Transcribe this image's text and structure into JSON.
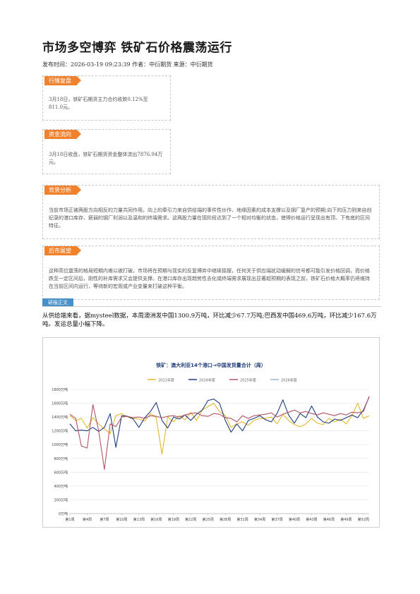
{
  "article": {
    "title": "市场多空博弈 铁矿石价格震荡运行",
    "meta": "发布时间：2026-03-19 09:23:39 作者：中衍期货 来源：中衍期货"
  },
  "sections": {
    "review": {
      "tag": "行情复盘",
      "text": "3月18日，铁矿石期货主力合约收跌0.12%至811.0元。"
    },
    "flow": {
      "tag": "资金流向",
      "text": "3月18日收盘，铁矿石期货资金整体流出7876.94万元。"
    },
    "background": {
      "tag": "背景分析",
      "text": "当前市场正被两股方向相反的力量共同作用。向上的牵引力来自供给端的事件性炒作、地缘因素的成本支撑以及钢厂复产的预期;向下的压力则来自创纪录的港口库存、疲弱的钢厂利润以及温和的终端需求。这两股力量在现阶段达到了一个相对均衡的状态，使得价格运行呈现出有顶、下有底的区间特征。"
    },
    "outlook": {
      "tag": "后市展望",
      "text": "这种高位震荡的格局短期内难以被打破。市场将在预期与现实的反复博弈中继续摇摆，任何关于供应端扰动缓解的信号都可能引发价格回调，而价格跌至一定区间后，刚性的补库需求又会提供支撑。在港口库存出现趋势性去化或终端需求展现出显著超预期的表现之前，铁矿石价格大概率仍将维持在当前区间内运行，等待新的宏观或产业变量来打破这种平衡。"
    }
  },
  "report": {
    "tag": "研报正文",
    "text": "从供给端来看，据mysteel数据，本周澳洲发中国1300.9万吨，环比减少67.7万吨;巴西发中国469.6万吨，环比减少167.6万吨。发运总量小幅下降。"
  },
  "chart_data": {
    "type": "line",
    "title": "铁矿：澳大利亚14个港口→中国发货量合计（周）",
    "y_unit": "万吨",
    "ylim": [
      0,
      1800
    ],
    "y_ticks": [
      "0万吨",
      "200万吨",
      "400万吨",
      "600万吨",
      "800万吨",
      "1000万吨",
      "1200万吨",
      "1400万吨",
      "1600万吨",
      "1800万吨"
    ],
    "x_labels": [
      "第1周",
      "第4周",
      "第7周",
      "第10周",
      "第13周",
      "第16周",
      "第19周",
      "第22周",
      "第25周",
      "第28周",
      "第31周",
      "第34周",
      "第37周",
      "第40周",
      "第43周",
      "第46周",
      "第49周",
      "第52周"
    ],
    "weeks": 53,
    "legend_position": "top",
    "grid": true,
    "series": [
      {
        "name": "2021年度",
        "color": "#e6b82e",
        "values": [
          1420,
          1350,
          1380,
          1240,
          1390,
          1300,
          1230,
          1160,
          1420,
          1450,
          1400,
          1380,
          1370,
          1340,
          1450,
          1390,
          860,
          1400,
          1330,
          1420,
          1360,
          1470,
          1350,
          1500,
          1550,
          1600,
          1480,
          1420,
          1250,
          1300,
          1330,
          1280,
          1350,
          1380,
          1380,
          1400,
          1300,
          1440,
          1350,
          1290,
          1260,
          1300,
          1380,
          1310,
          1290,
          1380,
          1330,
          1370,
          1300,
          1420,
          1600,
          1380,
          1420
        ]
      },
      {
        "name": "2024年度",
        "color": "#1f3d7a",
        "values": [
          1300,
          1200,
          1210,
          1200,
          1250,
          1190,
          1250,
          1450,
          960,
          1420,
          1410,
          1370,
          1250,
          1390,
          1480,
          1610,
          1350,
          1240,
          1400,
          1370,
          1430,
          1350,
          1440,
          1500,
          1640,
          1660,
          1600,
          1350,
          1180,
          1300,
          1200,
          1350,
          1380,
          1420,
          1360,
          1330,
          1450,
          1650,
          1430,
          1310,
          1450,
          1390,
          1560,
          1400,
          1330,
          1310,
          1370,
          1350,
          1390,
          1430,
          1390,
          1500,
          1690
        ]
      },
      {
        "name": "2025年度",
        "color": "#b05566",
        "values": [
          1440,
          1380,
          980,
          950,
          1580,
          1200,
          640,
          1300,
          1260,
          1400,
          1410,
          1390,
          1400,
          1380,
          1420,
          1410,
          1390,
          1410,
          1420,
          1400,
          1430,
          1450,
          1460,
          1420,
          1410,
          1450,
          1440,
          1390,
          1380,
          1330,
          1420,
          1380,
          1420,
          1430,
          1440,
          1460,
          1400,
          1440,
          1470,
          1500,
          1460,
          1480,
          1450,
          1430,
          1460,
          1440,
          1420,
          1450,
          1430,
          1470,
          1460,
          1480,
          1700
        ]
      },
      {
        "name": "2026年度",
        "color": "#9fb3d6",
        "values": []
      }
    ]
  }
}
